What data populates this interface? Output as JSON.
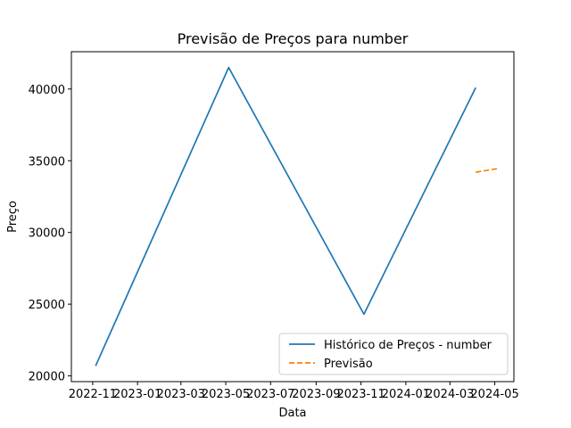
{
  "chart_data": {
    "type": "line",
    "title": "Previsão de Preços para number",
    "xlabel": "Data",
    "ylabel": "Preço",
    "x_ticks": [
      "2022-11",
      "2023-01",
      "2023-03",
      "2023-05",
      "2023-07",
      "2023-09",
      "2023-11",
      "2024-01",
      "2024-03",
      "2024-05"
    ],
    "y_ticks": [
      20000,
      25000,
      30000,
      35000,
      40000
    ],
    "xlim": [
      "2022-10-03",
      "2024-05-27"
    ],
    "ylim": [
      19600,
      42600
    ],
    "grid": false,
    "legend_position": "lower-right",
    "series": [
      {
        "name": "Histórico de Preços - number",
        "color": "#1f77b4",
        "style": "solid",
        "points": [
          {
            "x": "2022-11-05",
            "y": 20700
          },
          {
            "x": "2023-05-05",
            "y": 41500
          },
          {
            "x": "2023-11-05",
            "y": 24300
          },
          {
            "x": "2024-04-05",
            "y": 40100
          }
        ]
      },
      {
        "name": "Previsão",
        "color": "#ff7f0e",
        "style": "dashed",
        "points": [
          {
            "x": "2024-04-05",
            "y": 34200
          },
          {
            "x": "2024-05-05",
            "y": 34450
          }
        ]
      }
    ]
  }
}
